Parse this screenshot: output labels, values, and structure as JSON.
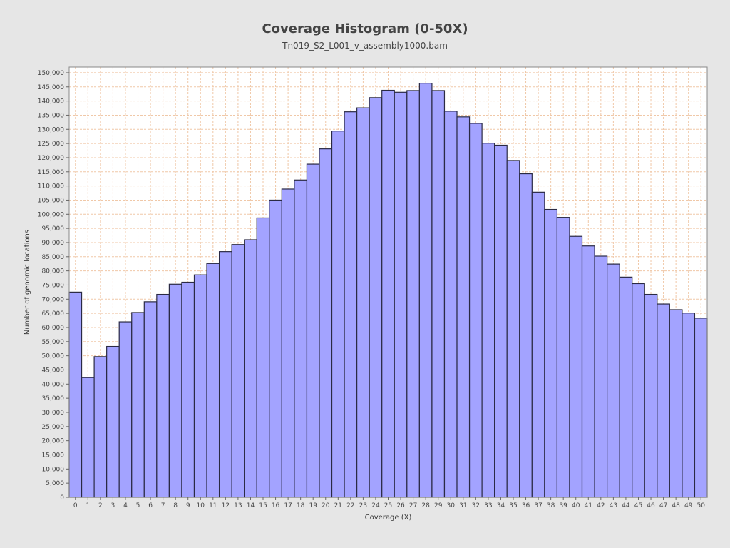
{
  "chart_data": {
    "type": "bar",
    "title": "Coverage Histogram (0-50X)",
    "subtitle": "Tn019_S2_L001_v_assembly1000.bam",
    "xlabel": "Coverage (X)",
    "ylabel": "Number of genomic locations",
    "categories": [
      "0",
      "1",
      "2",
      "3",
      "4",
      "5",
      "6",
      "7",
      "8",
      "9",
      "10",
      "11",
      "12",
      "13",
      "14",
      "15",
      "16",
      "17",
      "18",
      "19",
      "20",
      "21",
      "22",
      "23",
      "24",
      "25",
      "26",
      "27",
      "28",
      "29",
      "30",
      "31",
      "32",
      "33",
      "34",
      "35",
      "36",
      "37",
      "38",
      "39",
      "40",
      "41",
      "42",
      "43",
      "44",
      "45",
      "46",
      "47",
      "48",
      "49",
      "50"
    ],
    "values": [
      72500,
      42300,
      49700,
      53300,
      62000,
      65300,
      69100,
      71700,
      75300,
      76000,
      78600,
      82600,
      86800,
      89300,
      91000,
      98700,
      105000,
      108900,
      112100,
      117700,
      123100,
      129400,
      136200,
      137600,
      141200,
      143800,
      143100,
      143700,
      146300,
      143700,
      136400,
      134400,
      132100,
      125100,
      124400,
      119000,
      114300,
      107800,
      101700,
      98900,
      92200,
      88800,
      85200,
      82400,
      77800,
      75500,
      71700,
      68300,
      66300,
      65100,
      63300
    ],
    "ylim": [
      0,
      152000
    ],
    "yticks": [
      "0",
      "5,000",
      "10,000",
      "15,000",
      "20,000",
      "25,000",
      "30,000",
      "35,000",
      "40,000",
      "45,000",
      "50,000",
      "55,000",
      "60,000",
      "65,000",
      "70,000",
      "75,000",
      "80,000",
      "85,000",
      "90,000",
      "95,000",
      "100,000",
      "105,000",
      "110,000",
      "115,000",
      "120,000",
      "125,000",
      "130,000",
      "135,000",
      "140,000",
      "145,000",
      "150,000"
    ],
    "grid": true,
    "colors": {
      "bar_fill": "#a3a3ff",
      "bar_stroke": "#2a2a44",
      "grid": "#f0c8a8",
      "plot_bg": "#ffffff",
      "page_bg": "#e6e6e6"
    }
  }
}
